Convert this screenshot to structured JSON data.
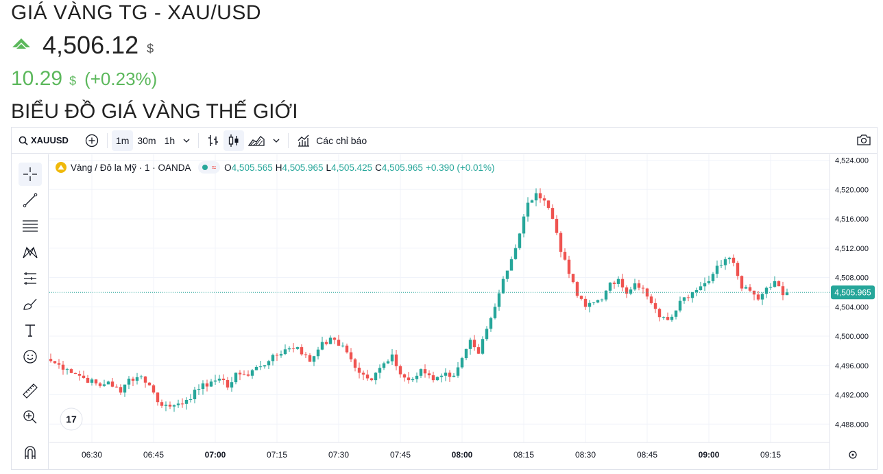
{
  "page": {
    "title": "GIÁ VÀNG TG - XAU/USD",
    "price": "4,506.12",
    "price_unit": "$",
    "change": "10.29",
    "change_unit": "$",
    "change_pct": "(+0.23%)",
    "section_title": "BIỂU ĐỒ GIÁ VÀNG THẾ GIỚI",
    "up_color": "#5cb85c"
  },
  "toolbar": {
    "symbol": "XAUUSD",
    "intervals": [
      "1m",
      "30m",
      "1h"
    ],
    "indicators_label": "Các chỉ báo"
  },
  "legend": {
    "name": "Vàng / Đô la Mỹ · 1 · OANDA",
    "o_label": "O",
    "o": "4,505.565",
    "h_label": "H",
    "h": "4,505.965",
    "l_label": "L",
    "l": "4,505.425",
    "c_label": "C",
    "c": "4,505.965",
    "change": "+0.390 (+0.01%)"
  },
  "left_tools": [
    "crosshair-icon",
    "trendline-icon",
    "fib-icon",
    "pattern-icon",
    "forecast-icon",
    "brush-icon",
    "text-icon",
    "emoji-icon",
    "ruler-icon",
    "zoom-icon",
    "magnet-icon"
  ],
  "colors": {
    "up": "#26a69a",
    "down": "#ef5350",
    "grid": "#f0f3fa",
    "axis_text": "#131722",
    "price_tag": "#26a69a"
  },
  "chart_data": {
    "type": "candlestick",
    "symbol": "XAUUSD",
    "interval": "1m",
    "y_ticks": [
      "4,524.000",
      "4,520.000",
      "4,516.000",
      "4,512.000",
      "4,508.000",
      "4,504.000",
      "4,500.000",
      "4,496.000",
      "4,492.000",
      "4,488.000"
    ],
    "y_tick_values": [
      4524,
      4520,
      4516,
      4512,
      4508,
      4504,
      4500,
      4496,
      4492,
      4488
    ],
    "ylim": [
      4485.5,
      4524.8
    ],
    "x_ticks": [
      "06:30",
      "06:45",
      "07:00",
      "07:15",
      "07:30",
      "07:45",
      "08:00",
      "08:15",
      "08:30",
      "08:45",
      "09:00",
      "09:15"
    ],
    "x_tick_minutes": [
      390,
      405,
      420,
      435,
      450,
      465,
      480,
      495,
      510,
      525,
      540,
      555
    ],
    "bold_x_ticks": [
      "07:00",
      "08:00",
      "09:00"
    ],
    "first_minute": 380,
    "last_price": "4,505.965",
    "last_price_value": 4505.965,
    "close_keypoints": [
      [
        380,
        4496.6
      ],
      [
        384,
        4495.5
      ],
      [
        388,
        4494.3
      ],
      [
        392,
        4493.2
      ],
      [
        394,
        4493.8
      ],
      [
        397,
        4492.3
      ],
      [
        399,
        4494.2
      ],
      [
        402,
        4494.5
      ],
      [
        404,
        4493.3
      ],
      [
        406,
        4491.0
      ],
      [
        409,
        4490.4
      ],
      [
        411,
        4490.8
      ],
      [
        413,
        4491.3
      ],
      [
        416,
        4492.8
      ],
      [
        419,
        4493.8
      ],
      [
        421,
        4494.2
      ],
      [
        423,
        4493.0
      ],
      [
        425,
        4495.0
      ],
      [
        428,
        4494.6
      ],
      [
        430,
        4495.8
      ],
      [
        433,
        4496.6
      ],
      [
        437,
        4498.2
      ],
      [
        440,
        4498.5
      ],
      [
        443,
        4496.5
      ],
      [
        446,
        4499.2
      ],
      [
        449,
        4499.5
      ],
      [
        452,
        4497.8
      ],
      [
        455,
        4495.0
      ],
      [
        458,
        4494.0
      ],
      [
        461,
        4496.3
      ],
      [
        463,
        4497.5
      ],
      [
        465,
        4494.8
      ],
      [
        467,
        4494.0
      ],
      [
        470,
        4495.5
      ],
      [
        473,
        4494.0
      ],
      [
        475,
        4494.6
      ],
      [
        478,
        4494.6
      ],
      [
        480,
        4497.0
      ],
      [
        482,
        4499.5
      ],
      [
        484,
        4497.6
      ],
      [
        486,
        4501.0
      ],
      [
        488,
        4504.0
      ],
      [
        490,
        4507.8
      ],
      [
        492,
        4510.5
      ],
      [
        494,
        4514.0
      ],
      [
        496,
        4518.2
      ],
      [
        498,
        4519.5
      ],
      [
        500,
        4518.5
      ],
      [
        502,
        4516.0
      ],
      [
        504,
        4511.5
      ],
      [
        506,
        4508.5
      ],
      [
        508,
        4505.5
      ],
      [
        510,
        4504.0
      ],
      [
        512,
        4504.6
      ],
      [
        514,
        4505.0
      ],
      [
        516,
        4507.3
      ],
      [
        518,
        4507.8
      ],
      [
        520,
        4505.8
      ],
      [
        522,
        4507.2
      ],
      [
        524,
        4506.5
      ],
      [
        526,
        4504.5
      ],
      [
        528,
        4502.6
      ],
      [
        530,
        4502.2
      ],
      [
        532,
        4503.5
      ],
      [
        534,
        4505.3
      ],
      [
        536,
        4506.0
      ],
      [
        538,
        4506.8
      ],
      [
        540,
        4507.5
      ],
      [
        542,
        4509.6
      ],
      [
        544,
        4510.5
      ],
      [
        546,
        4510.0
      ],
      [
        548,
        4506.5
      ],
      [
        550,
        4506.2
      ],
      [
        552,
        4505.0
      ],
      [
        554,
        4506.6
      ],
      [
        556,
        4507.5
      ],
      [
        558,
        4505.6
      ],
      [
        559,
        4505.965
      ]
    ]
  }
}
